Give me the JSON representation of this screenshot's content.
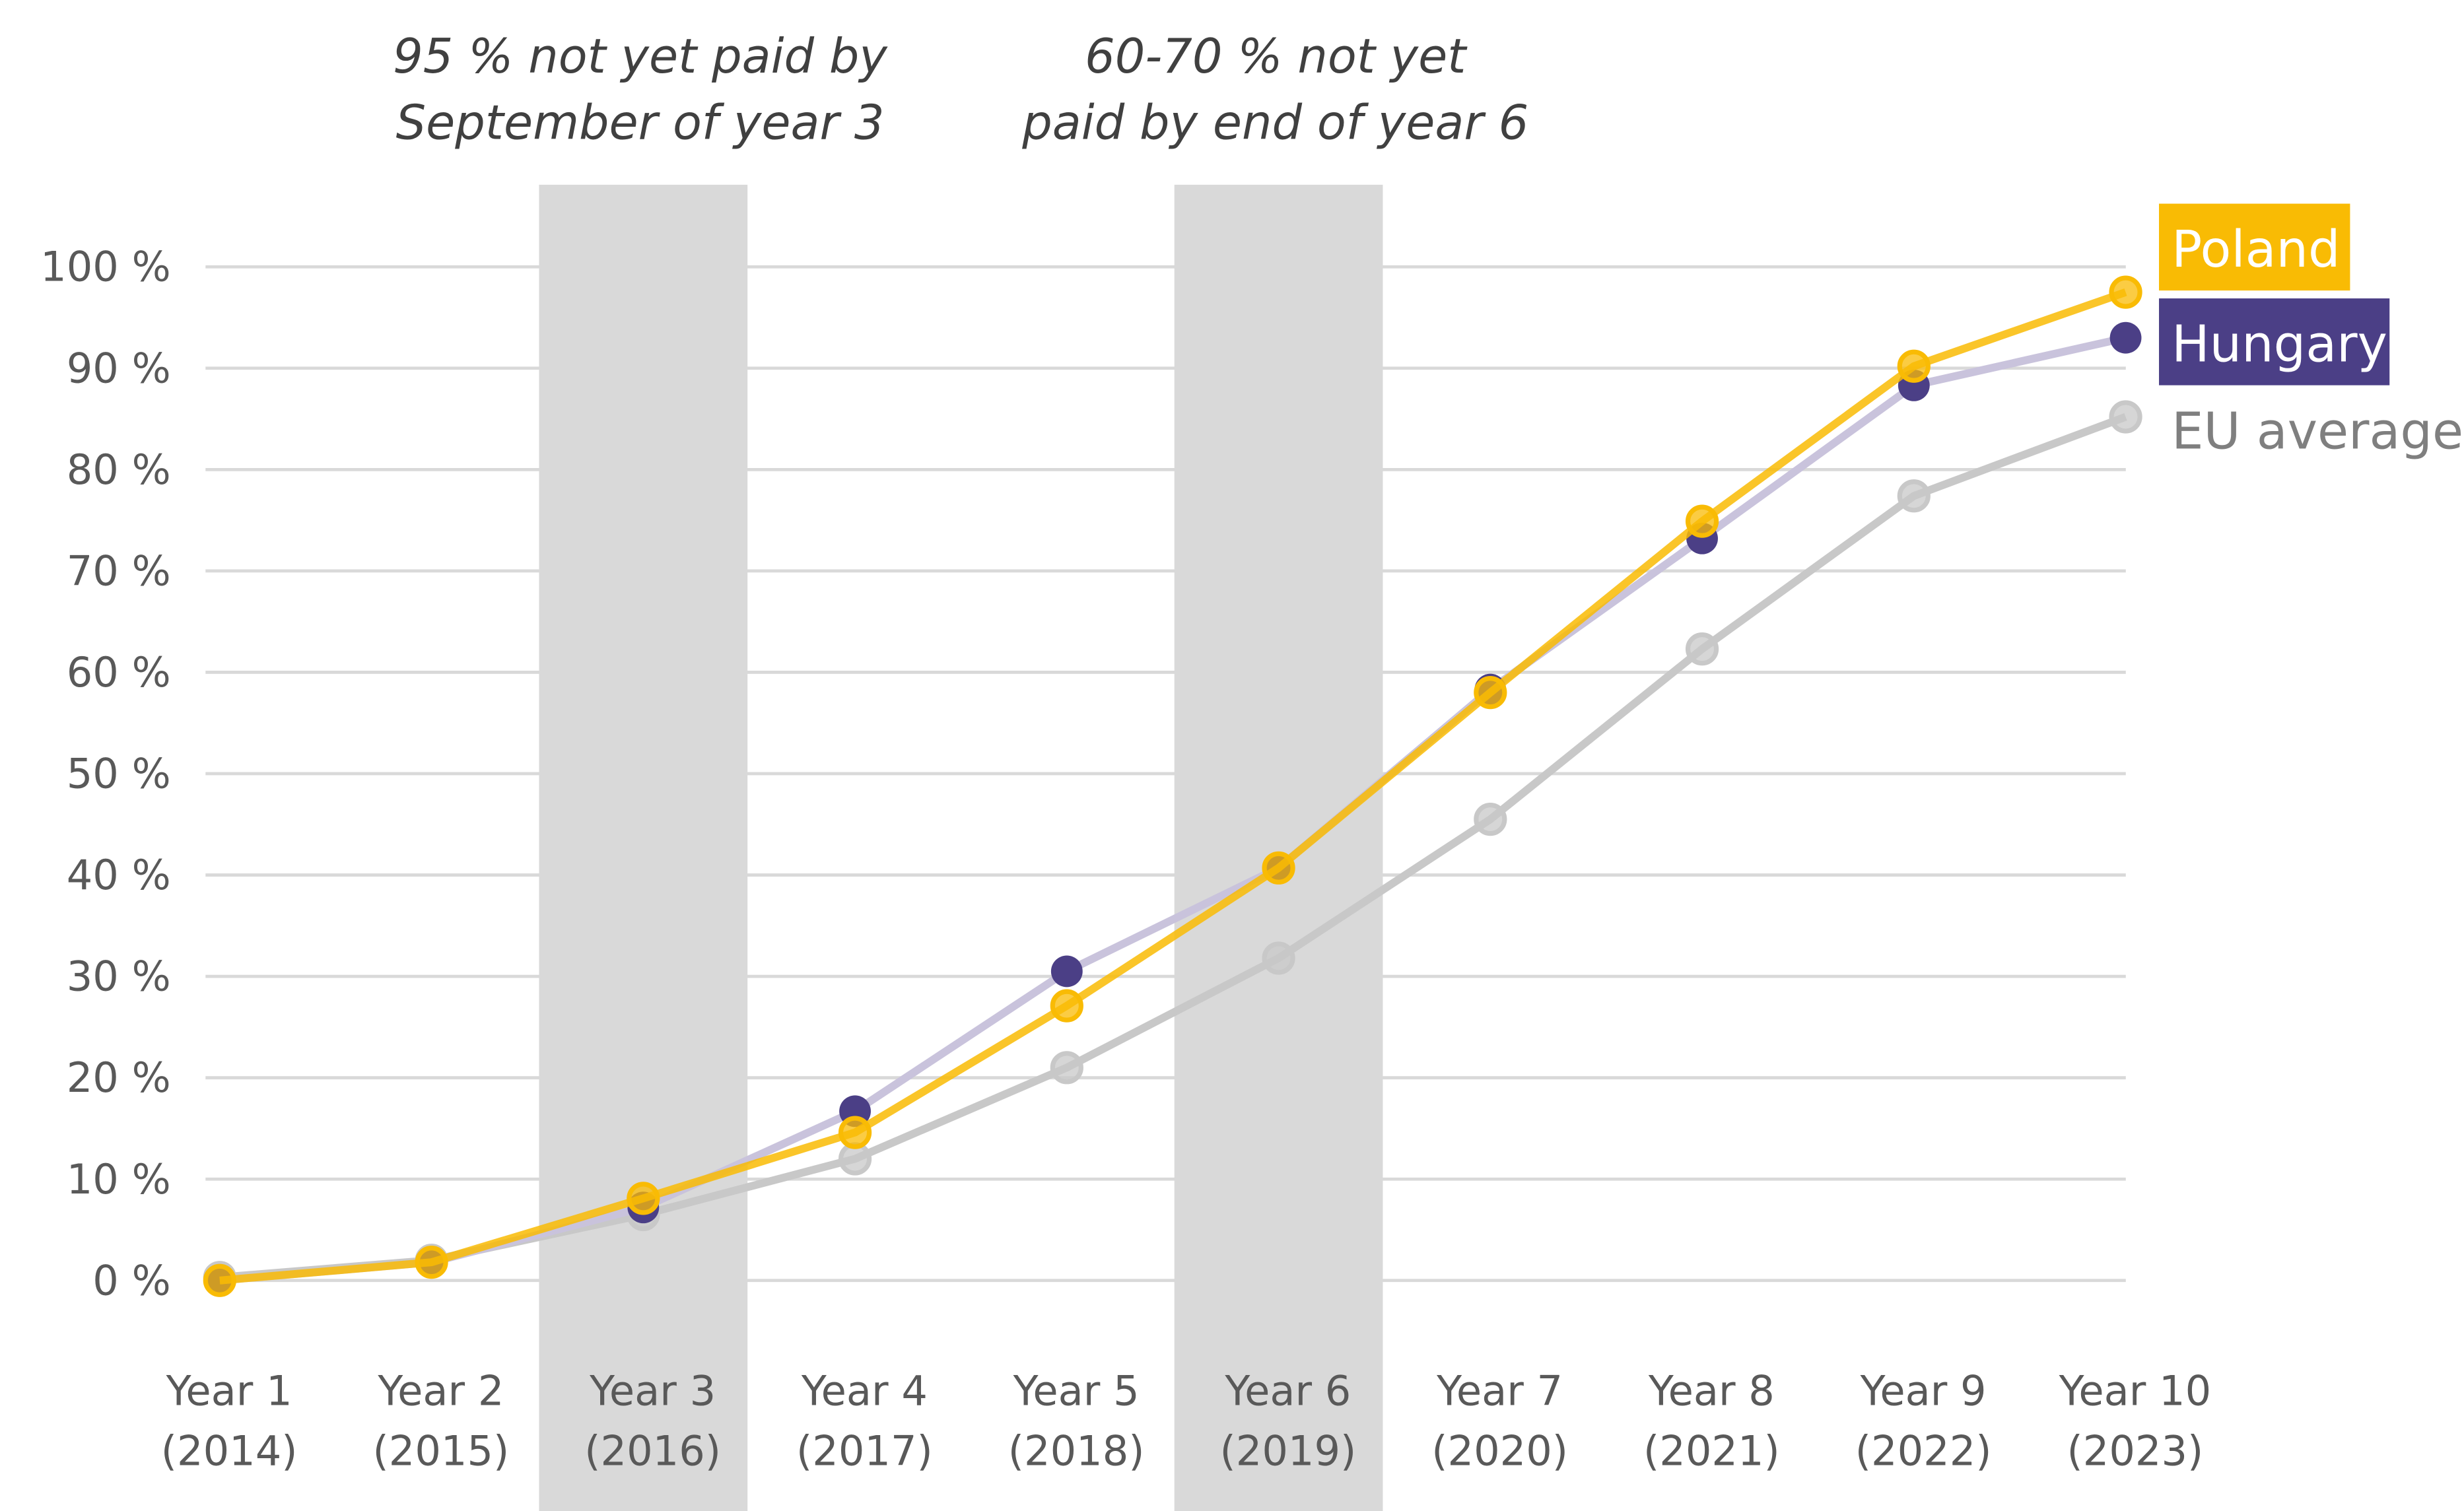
{
  "chart_data": {
    "type": "line",
    "title": "",
    "xlabel": "",
    "ylabel": "",
    "ylim": [
      0,
      100
    ],
    "yticks": [
      "0 %",
      "10 %",
      "20 %",
      "30 %",
      "40 %",
      "50 %",
      "60 %",
      "70 %",
      "80 %",
      "90 %",
      "100 %"
    ],
    "categories": [
      {
        "line1": "Year 1",
        "line2": "(2014)"
      },
      {
        "line1": "Year 2",
        "line2": "(2015)"
      },
      {
        "line1": "Year 3",
        "line2": "(2016)"
      },
      {
        "line1": "Year 4",
        "line2": "(2017)"
      },
      {
        "line1": "Year 5",
        "line2": "(2018)"
      },
      {
        "line1": "Year 6",
        "line2": "(2019)"
      },
      {
        "line1": "Year 7",
        "line2": "(2020)"
      },
      {
        "line1": "Year 8",
        "line2": "(2021)"
      },
      {
        "line1": "Year 9",
        "line2": "(2022)"
      },
      {
        "line1": "Year 10",
        "line2": "(2023)"
      }
    ],
    "highlighted_categories": [
      2,
      5
    ],
    "annotations": [
      {
        "lines": [
          "95 % not yet paid by",
          "September of year 3"
        ],
        "category": 2
      },
      {
        "lines": [
          "60-70 % not yet",
          "paid by end of year 6"
        ],
        "category": 5
      }
    ],
    "series": [
      {
        "name": "EU average",
        "color": "#c8c8c8",
        "values": [
          0.3,
          2.0,
          6.5,
          12.0,
          21.0,
          31.8,
          45.5,
          62.3,
          77.4,
          85.2
        ]
      },
      {
        "name": "Hungary",
        "color": "#4b3f86",
        "values": [
          0.0,
          1.8,
          7.2,
          16.7,
          30.5,
          40.7,
          58.3,
          73.2,
          88.3,
          93.0
        ]
      },
      {
        "name": "Poland",
        "color": "#f9bb04",
        "values": [
          0.0,
          1.8,
          8.1,
          14.6,
          27.1,
          40.7,
          58.0,
          74.9,
          90.2,
          97.5
        ]
      }
    ],
    "legend": "right",
    "grid": true
  }
}
